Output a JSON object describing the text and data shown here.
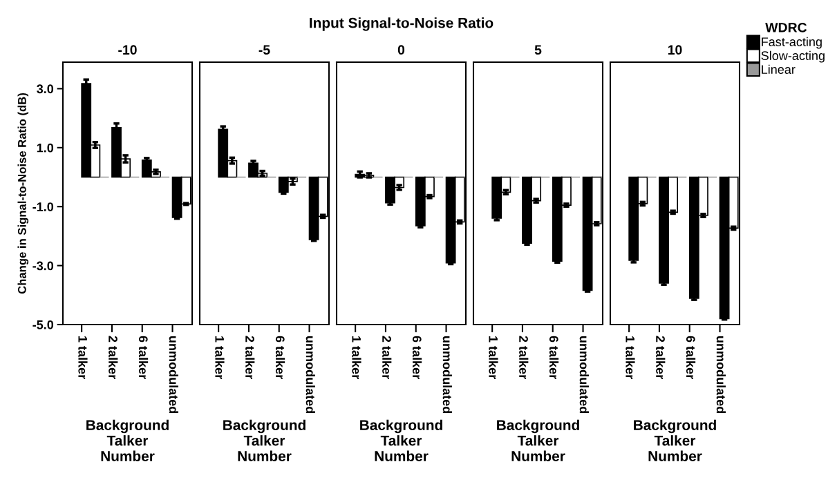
{
  "chart_data": [
    {
      "type": "bar",
      "title": "-10",
      "xlabel": "Background Talker Number",
      "ylabel": "Change in Signal-to-Noise Ratio (dB)",
      "annotations": [
        "Input Signal-to-Noise Ratio"
      ],
      "categories": [
        "1 talker",
        "2 talker",
        "6 talker",
        "unmodulated"
      ],
      "ylim": [
        -5,
        3.9
      ],
      "yticks": [
        {
          "value": -5,
          "label": "-5.0"
        },
        {
          "value": -3,
          "label": "-3.0"
        },
        {
          "value": -1,
          "label": "-1.0"
        },
        {
          "value": 1,
          "label": "1.0"
        },
        {
          "value": 3,
          "label": "3.0"
        }
      ],
      "grid": false,
      "series": [
        {
          "color": "#000000",
          "values": [
            3.17,
            1.68,
            0.58,
            -1.37
          ],
          "errors": [
            0.14,
            0.14,
            0.07,
            0.04
          ]
        },
        {
          "color": "#ffffff",
          "values": [
            1.09,
            0.62,
            0.18,
            -0.91
          ],
          "errors": [
            0.1,
            0.12,
            0.07,
            0.03
          ]
        },
        {
          "color": "#999999",
          "values": [
            0,
            0,
            0,
            0
          ]
        }
      ]
    },
    {
      "type": "bar",
      "title": "-5",
      "xlabel": "Background Talker Number",
      "categories": [
        "1 talker",
        "2 talker",
        "6 talker",
        "unmodulated"
      ],
      "ylim": [
        -5,
        3.9
      ],
      "tick_labels": "x",
      "grid": false,
      "series": [
        {
          "color": "#000000",
          "values": [
            1.62,
            0.47,
            -0.51,
            -2.12
          ],
          "errors": [
            0.1,
            0.08,
            0.05,
            0.04
          ]
        },
        {
          "color": "#ffffff",
          "values": [
            0.56,
            0.13,
            -0.15,
            -1.33
          ],
          "errors": [
            0.1,
            0.08,
            0.1,
            0.05
          ]
        },
        {
          "color": "#999999",
          "values": [
            0,
            0,
            0,
            0
          ]
        }
      ]
    },
    {
      "type": "bar",
      "title": "0",
      "xlabel": "Background Talker Number",
      "categories": [
        "1 talker",
        "2 talker",
        "6 talker",
        "unmodulated"
      ],
      "ylim": [
        -5,
        3.9
      ],
      "tick_labels": "x",
      "grid": false,
      "series": [
        {
          "color": "#000000",
          "values": [
            0.09,
            -0.87,
            -1.65,
            -2.91
          ],
          "errors": [
            0.1,
            0.06,
            0.05,
            0.04
          ]
        },
        {
          "color": "#ffffff",
          "values": [
            0.06,
            -0.35,
            -0.66,
            -1.52
          ],
          "errors": [
            0.07,
            0.08,
            0.05,
            0.05
          ]
        },
        {
          "color": "#999999",
          "values": [
            0,
            0,
            0,
            0
          ]
        }
      ]
    },
    {
      "type": "bar",
      "title": "5",
      "xlabel": "Background Talker Number",
      "categories": [
        "1 talker",
        "2 talker",
        "6 talker",
        "unmodulated"
      ],
      "ylim": [
        -5,
        3.9
      ],
      "tick_labels": "x",
      "grid": false,
      "series": [
        {
          "color": "#000000",
          "values": [
            -1.39,
            -2.24,
            -2.85,
            -3.84
          ],
          "errors": [
            0.07,
            0.05,
            0.05,
            0.04
          ]
        },
        {
          "color": "#ffffff",
          "values": [
            -0.51,
            -0.8,
            -0.95,
            -1.58
          ],
          "errors": [
            0.07,
            0.06,
            0.05,
            0.05
          ]
        },
        {
          "color": "#999999",
          "values": [
            0,
            0,
            0,
            0
          ]
        }
      ]
    },
    {
      "type": "bar",
      "title": "10",
      "xlabel": "Background Talker Number",
      "legend_title": "WDRC",
      "categories": [
        "1 talker",
        "2 talker",
        "6 talker",
        "unmodulated"
      ],
      "ylim": [
        -5,
        3.9
      ],
      "tick_labels": "x",
      "grid": false,
      "legend": "top right",
      "series": [
        {
          "name": "Fast-acting",
          "color": "#000000",
          "values": [
            -2.82,
            -3.59,
            -4.11,
            -4.8
          ],
          "errors": [
            0.07,
            0.06,
            0.05,
            0.03
          ]
        },
        {
          "name": "Slow-acting",
          "color": "#ffffff",
          "values": [
            -0.9,
            -1.19,
            -1.3,
            -1.73
          ],
          "errors": [
            0.06,
            0.05,
            0.05,
            0.05
          ]
        },
        {
          "name": "Linear",
          "color": "#999999",
          "values": [
            0,
            0,
            0,
            0
          ]
        }
      ]
    }
  ]
}
